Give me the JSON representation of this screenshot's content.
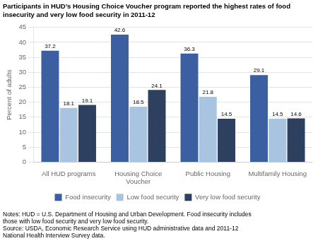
{
  "chart_data": {
    "type": "bar",
    "title": "Participants in HUD’s Housing Choice Voucher program reported the highest rates of food\ninsecurity and very low food security in 2011-12",
    "y_label": "Percent of adults",
    "categories": [
      "All HUD programs",
      "Housing Choice\nVoucher",
      "Public Housing",
      "Multifamily Housing"
    ],
    "series": [
      {
        "name": "Food insecurity",
        "color": "#3B5FA0",
        "values": [
          37.2,
          42.6,
          36.3,
          29.1
        ]
      },
      {
        "name": "Low food security",
        "color": "#A8C4E0",
        "values": [
          18.1,
          18.5,
          21.8,
          14.5
        ]
      },
      {
        "name": "Very low food security",
        "color": "#2E4060",
        "values": [
          19.1,
          24.1,
          14.5,
          14.6
        ]
      }
    ],
    "ylim": [
      0,
      45
    ],
    "yticks": [
      0,
      5,
      10,
      15,
      20,
      25,
      30,
      35,
      40,
      45
    ],
    "grid": true,
    "legend": "bottom",
    "data_labels": true,
    "annotations": [
      "Notes: HUD = U.S. Department of Housing and Urban Development. Food insecurity includes",
      "those with low food security and very low food security.",
      "Source: USDA, Economic Research Service using HUD administrative data and 2011-12",
      "National Health Interview Survey data."
    ]
  }
}
